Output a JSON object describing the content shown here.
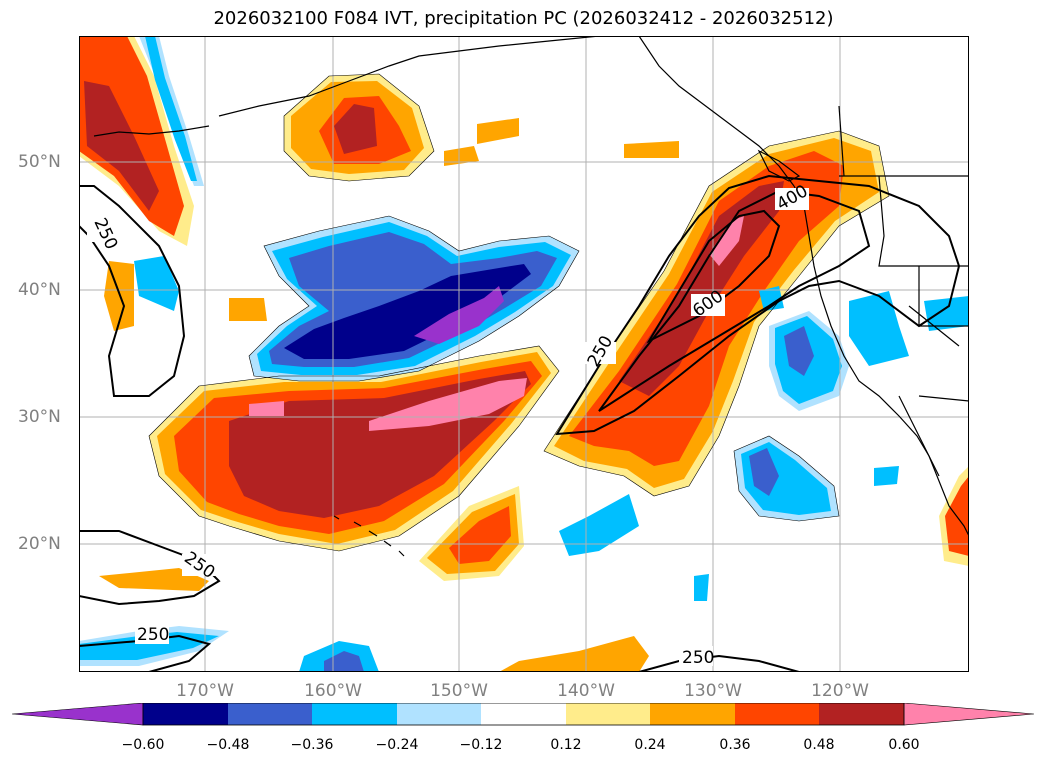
{
  "title": "2026032100 F084 IVT, precipitation PC (2026032412 - 2026032512)",
  "lat_labels": [
    {
      "text": "50°N",
      "lat": 50
    },
    {
      "text": "40°N",
      "lat": 40
    },
    {
      "text": "30°N",
      "lat": 30
    },
    {
      "text": "20°N",
      "lat": 20
    }
  ],
  "lon_labels": [
    {
      "text": "170°W",
      "lon": -170
    },
    {
      "text": "160°W",
      "lon": -160
    },
    {
      "text": "150°W",
      "lon": -150
    },
    {
      "text": "140°W",
      "lon": -140
    },
    {
      "text": "130°W",
      "lon": -130
    },
    {
      "text": "120°W",
      "lon": -120
    }
  ],
  "contour_labels": [
    "250",
    "250",
    "250",
    "250",
    "250",
    "600",
    "400"
  ],
  "colorbar": {
    "ticks": [
      "−0.60",
      "−0.48",
      "−0.36",
      "−0.24",
      "−0.12",
      "0.12",
      "0.24",
      "0.36",
      "0.48",
      "0.60"
    ],
    "colors": [
      "#9932cc",
      "#00008b",
      "#3a5fcd",
      "#00bfff",
      "#b0e2ff",
      "#ffffff",
      "#ffec8b",
      "#ffa500",
      "#ff4500",
      "#b22222",
      "#ff82ab"
    ]
  },
  "colors": {
    "grid": "#b0b0b0",
    "coast": "#000000",
    "label": "#808080"
  }
}
